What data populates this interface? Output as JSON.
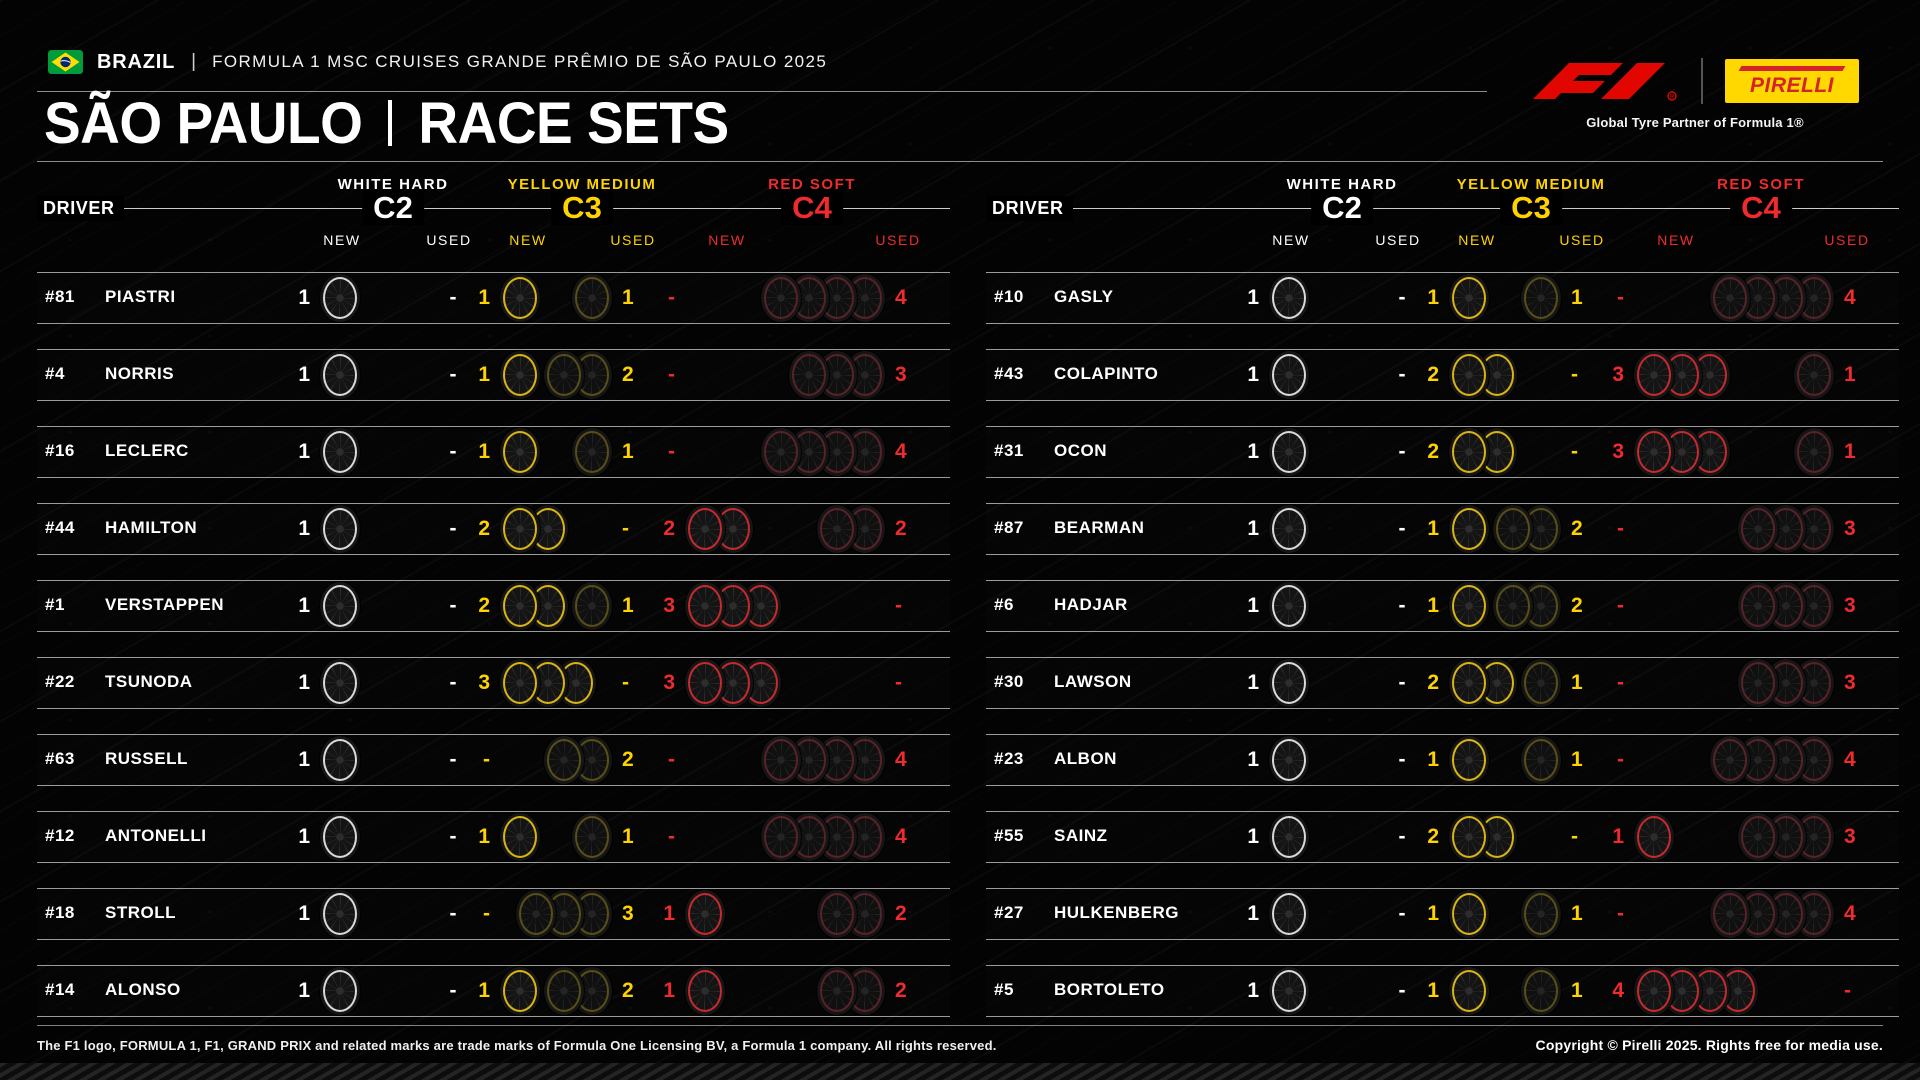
{
  "header": {
    "flag": "brazil-flag",
    "country": "BRAZIL",
    "separator": "|",
    "event": "FORMULA 1 MSC CRUISES GRANDE PRÊMIO DE SÃO PAULO 2025",
    "title_left": "SÃO PAULO",
    "title_right": "RACE SETS",
    "pirelli_logo": "PIRELLI",
    "pirelli_tagline": "Global Tyre Partner of Formula 1®"
  },
  "columns": {
    "driver": "DRIVER",
    "new_label": "NEW",
    "used_label": "USED",
    "compounds": [
      {
        "name": "WHITE HARD",
        "code": "C2",
        "color": "#ffffff"
      },
      {
        "name": "YELLOW MEDIUM",
        "code": "C3",
        "color": "#ffd300"
      },
      {
        "name": "RED SOFT",
        "code": "C4",
        "color": "#ef2b2d"
      }
    ]
  },
  "tables": {
    "left": [
      {
        "number": "#81",
        "name": "PIASTRI",
        "c2_new": "1",
        "c2_used": "-",
        "c3_new": "1",
        "c3_used": "1",
        "c4_new": "-",
        "c4_used": "4"
      },
      {
        "number": "#4",
        "name": "NORRIS",
        "c2_new": "1",
        "c2_used": "-",
        "c3_new": "1",
        "c3_used": "2",
        "c4_new": "-",
        "c4_used": "3"
      },
      {
        "number": "#16",
        "name": "LECLERC",
        "c2_new": "1",
        "c2_used": "-",
        "c3_new": "1",
        "c3_used": "1",
        "c4_new": "-",
        "c4_used": "4"
      },
      {
        "number": "#44",
        "name": "HAMILTON",
        "c2_new": "1",
        "c2_used": "-",
        "c3_new": "2",
        "c3_used": "-",
        "c4_new": "2",
        "c4_used": "2"
      },
      {
        "number": "#1",
        "name": "VERSTAPPEN",
        "c2_new": "1",
        "c2_used": "-",
        "c3_new": "2",
        "c3_used": "1",
        "c4_new": "3",
        "c4_used": "-"
      },
      {
        "number": "#22",
        "name": "TSUNODA",
        "c2_new": "1",
        "c2_used": "-",
        "c3_new": "3",
        "c3_used": "-",
        "c4_new": "3",
        "c4_used": "-"
      },
      {
        "number": "#63",
        "name": "RUSSELL",
        "c2_new": "1",
        "c2_used": "-",
        "c3_new": "-",
        "c3_used": "2",
        "c4_new": "-",
        "c4_used": "4"
      },
      {
        "number": "#12",
        "name": "ANTONELLI",
        "c2_new": "1",
        "c2_used": "-",
        "c3_new": "1",
        "c3_used": "1",
        "c4_new": "-",
        "c4_used": "4"
      },
      {
        "number": "#18",
        "name": "STROLL",
        "c2_new": "1",
        "c2_used": "-",
        "c3_new": "-",
        "c3_used": "3",
        "c4_new": "1",
        "c4_used": "2"
      },
      {
        "number": "#14",
        "name": "ALONSO",
        "c2_new": "1",
        "c2_used": "-",
        "c3_new": "1",
        "c3_used": "2",
        "c4_new": "1",
        "c4_used": "2"
      }
    ],
    "right": [
      {
        "number": "#10",
        "name": "GASLY",
        "c2_new": "1",
        "c2_used": "-",
        "c3_new": "1",
        "c3_used": "1",
        "c4_new": "-",
        "c4_used": "4"
      },
      {
        "number": "#43",
        "name": "COLAPINTO",
        "c2_new": "1",
        "c2_used": "-",
        "c3_new": "2",
        "c3_used": "-",
        "c4_new": "3",
        "c4_used": "1"
      },
      {
        "number": "#31",
        "name": "OCON",
        "c2_new": "1",
        "c2_used": "-",
        "c3_new": "2",
        "c3_used": "-",
        "c4_new": "3",
        "c4_used": "1"
      },
      {
        "number": "#87",
        "name": "BEARMAN",
        "c2_new": "1",
        "c2_used": "-",
        "c3_new": "1",
        "c3_used": "2",
        "c4_new": "-",
        "c4_used": "3"
      },
      {
        "number": "#6",
        "name": "HADJAR",
        "c2_new": "1",
        "c2_used": "-",
        "c3_new": "1",
        "c3_used": "2",
        "c4_new": "-",
        "c4_used": "3"
      },
      {
        "number": "#30",
        "name": "LAWSON",
        "c2_new": "1",
        "c2_used": "-",
        "c3_new": "2",
        "c3_used": "1",
        "c4_new": "-",
        "c4_used": "3"
      },
      {
        "number": "#23",
        "name": "ALBON",
        "c2_new": "1",
        "c2_used": "-",
        "c3_new": "1",
        "c3_used": "1",
        "c4_new": "-",
        "c4_used": "4"
      },
      {
        "number": "#55",
        "name": "SAINZ",
        "c2_new": "1",
        "c2_used": "-",
        "c3_new": "2",
        "c3_used": "-",
        "c4_new": "1",
        "c4_used": "3"
      },
      {
        "number": "#27",
        "name": "HULKENBERG",
        "c2_new": "1",
        "c2_used": "-",
        "c3_new": "1",
        "c3_used": "1",
        "c4_new": "-",
        "c4_used": "4"
      },
      {
        "number": "#5",
        "name": "BORTOLETO",
        "c2_new": "1",
        "c2_used": "-",
        "c3_new": "1",
        "c3_used": "1",
        "c4_new": "4",
        "c4_used": "-"
      }
    ]
  },
  "chart_data": {
    "type": "table",
    "title": "SÃO PAULO | RACE SETS",
    "subtitle": "BRAZIL | FORMULA 1 MSC CRUISES GRANDE PRÊMIO DE SÃO PAULO 2025",
    "columns": [
      "Driver",
      "C2 Hard New",
      "C2 Hard Used",
      "C3 Medium New",
      "C3 Medium Used",
      "C4 Soft New",
      "C4 Soft Used"
    ],
    "rows": [
      [
        "#81 PIASTRI",
        1,
        0,
        1,
        1,
        0,
        4
      ],
      [
        "#4 NORRIS",
        1,
        0,
        1,
        2,
        0,
        3
      ],
      [
        "#16 LECLERC",
        1,
        0,
        1,
        1,
        0,
        4
      ],
      [
        "#44 HAMILTON",
        1,
        0,
        2,
        0,
        2,
        2
      ],
      [
        "#1 VERSTAPPEN",
        1,
        0,
        2,
        1,
        3,
        0
      ],
      [
        "#22 TSUNODA",
        1,
        0,
        3,
        0,
        3,
        0
      ],
      [
        "#63 RUSSELL",
        1,
        0,
        0,
        2,
        0,
        4
      ],
      [
        "#12 ANTONELLI",
        1,
        0,
        1,
        1,
        0,
        4
      ],
      [
        "#18 STROLL",
        1,
        0,
        0,
        3,
        1,
        2
      ],
      [
        "#14 ALONSO",
        1,
        0,
        1,
        2,
        1,
        2
      ],
      [
        "#10 GASLY",
        1,
        0,
        1,
        1,
        0,
        4
      ],
      [
        "#43 COLAPINTO",
        1,
        0,
        2,
        0,
        3,
        1
      ],
      [
        "#31 OCON",
        1,
        0,
        2,
        0,
        3,
        1
      ],
      [
        "#87 BEARMAN",
        1,
        0,
        1,
        2,
        0,
        3
      ],
      [
        "#6 HADJAR",
        1,
        0,
        1,
        2,
        0,
        3
      ],
      [
        "#30 LAWSON",
        1,
        0,
        2,
        1,
        0,
        3
      ],
      [
        "#23 ALBON",
        1,
        0,
        1,
        1,
        0,
        4
      ],
      [
        "#55 SAINZ",
        1,
        0,
        2,
        0,
        1,
        3
      ],
      [
        "#27 HULKENBERG",
        1,
        0,
        1,
        1,
        0,
        4
      ],
      [
        "#5 BORTOLETO",
        1,
        0,
        1,
        1,
        4,
        0
      ]
    ],
    "legend": [
      "WHITE HARD C2",
      "YELLOW MEDIUM C3",
      "RED SOFT C4"
    ],
    "colors": {
      "hard": "#ffffff",
      "medium": "#ffd300",
      "soft": "#ef2b2d"
    }
  },
  "footer": {
    "left": "The F1 logo, FORMULA 1, F1, GRAND PRIX and related marks are trade marks of Formula One Licensing BV, a Formula 1 company. All rights reserved.",
    "right": "Copyright © Pirelli 2025. Rights free for media use."
  }
}
